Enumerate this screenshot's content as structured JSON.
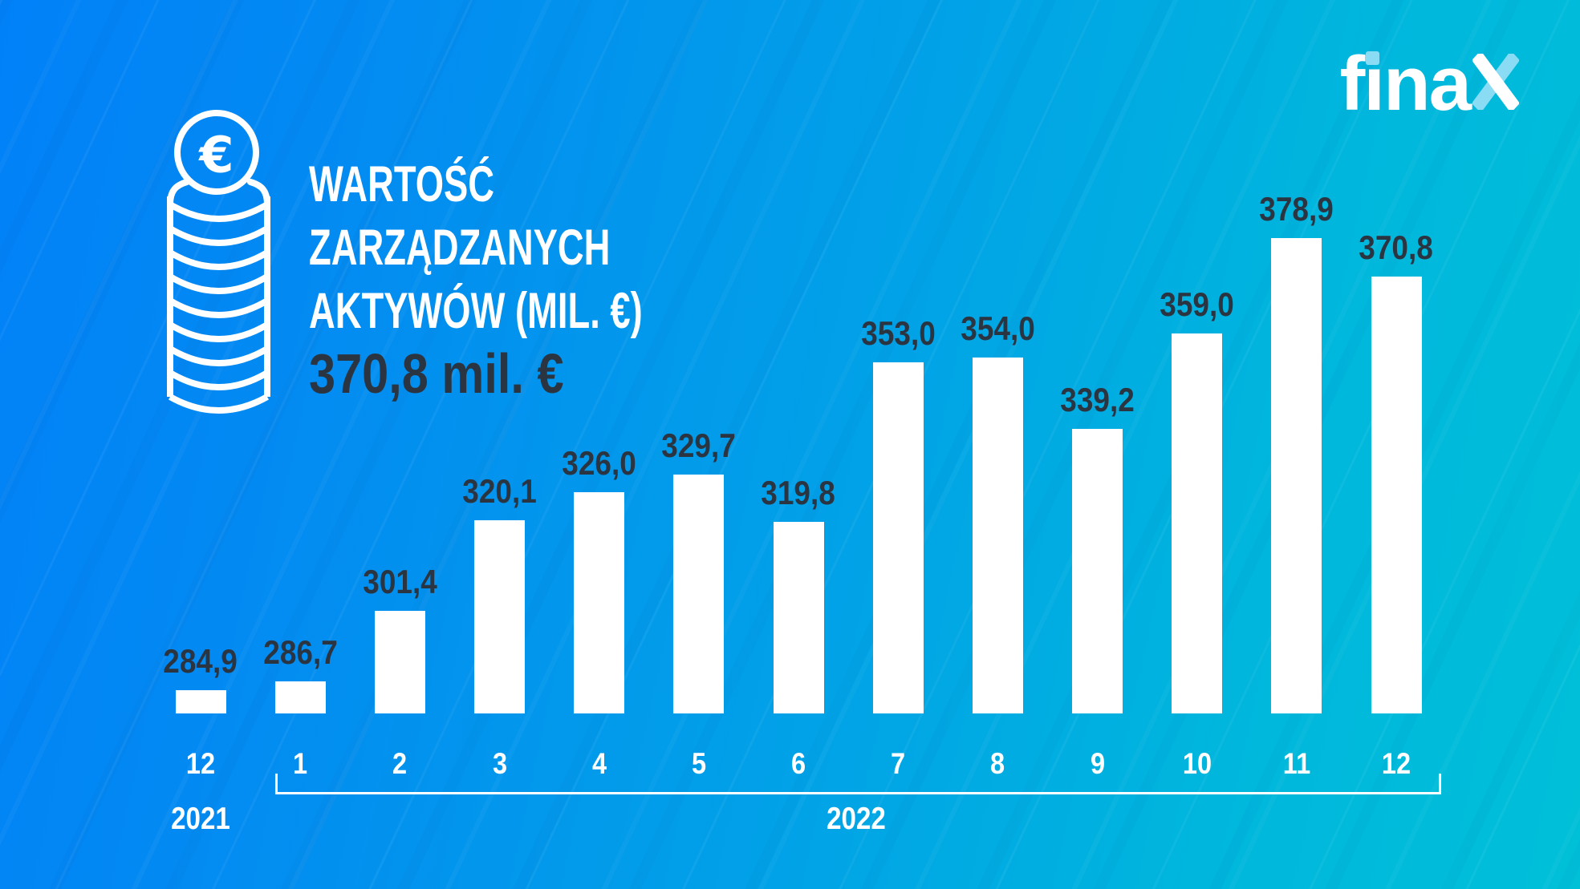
{
  "logo": {
    "text": "finax",
    "part_f": "f",
    "i_stem": "ı",
    "part_na": "na",
    "accent_color": "#8adcf5"
  },
  "header": {
    "title_lines": [
      "WARTOŚĆ",
      "ZARZĄDZANYCH",
      "AKTYWÓW (MIL. €)"
    ],
    "current_value": "370,8 mil. €",
    "euro_symbol": "€"
  },
  "chart_data": {
    "type": "bar",
    "title": "WARTOŚĆ ZARZĄDZANYCH AKTYWÓW (MIL. €)",
    "xlabel": "",
    "ylabel": "",
    "unit": "mil. €",
    "ylim": [
      280,
      390
    ],
    "grid": false,
    "legend": false,
    "bar_color": "#ffffff",
    "value_label_color": "#2b3541",
    "axis_label_color": "#ffffff",
    "points": [
      {
        "month": "12",
        "value": 284.9,
        "label": "284,9",
        "year_below": "2021"
      },
      {
        "month": "1",
        "value": 286.7,
        "label": "286,7"
      },
      {
        "month": "2",
        "value": 301.4,
        "label": "301,4"
      },
      {
        "month": "3",
        "value": 320.1,
        "label": "320,1"
      },
      {
        "month": "4",
        "value": 326.0,
        "label": "326,0"
      },
      {
        "month": "5",
        "value": 329.7,
        "label": "329,7"
      },
      {
        "month": "6",
        "value": 319.8,
        "label": "319,8"
      },
      {
        "month": "7",
        "value": 353.0,
        "label": "353,0"
      },
      {
        "month": "8",
        "value": 354.0,
        "label": "354,0"
      },
      {
        "month": "9",
        "value": 339.2,
        "label": "339,2"
      },
      {
        "month": "10",
        "value": 359.0,
        "label": "359,0"
      },
      {
        "month": "11",
        "value": 378.9,
        "label": "378,9"
      },
      {
        "month": "12",
        "value": 370.8,
        "label": "370,8"
      }
    ],
    "group_bracket": {
      "label": "2022",
      "from_month": "1",
      "to_month": "12"
    }
  },
  "colors": {
    "background_start": "#0181f8",
    "background_end": "#00c0d8",
    "bar": "#ffffff",
    "dark_text": "#2b3541",
    "light_text": "#ffffff",
    "logo_accent": "#8adcf5"
  }
}
